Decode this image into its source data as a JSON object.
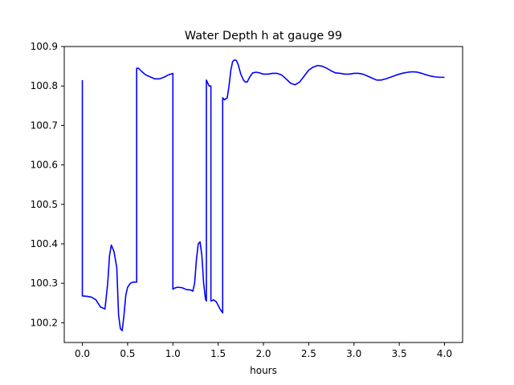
{
  "chart_data": {
    "type": "line",
    "title": "Water Depth h at gauge 99",
    "xlabel": "hours",
    "ylabel": "",
    "xlim": [
      -0.2,
      4.2
    ],
    "ylim": [
      100.15,
      100.9
    ],
    "xticks": [
      0.0,
      0.5,
      1.0,
      1.5,
      2.0,
      2.5,
      3.0,
      3.5,
      4.0
    ],
    "xtick_labels": [
      "0.0",
      "0.5",
      "1.0",
      "1.5",
      "2.0",
      "2.5",
      "3.0",
      "3.5",
      "4.0"
    ],
    "yticks": [
      100.2,
      100.3,
      100.4,
      100.5,
      100.6,
      100.7,
      100.8,
      100.9
    ],
    "ytick_labels": [
      "100.2",
      "100.3",
      "100.4",
      "100.5",
      "100.6",
      "100.7",
      "100.8",
      "100.9"
    ],
    "grid": false,
    "line_color": "#0000ff",
    "series": [
      {
        "x": [
          0.0,
          0.0,
          0.0,
          0.05,
          0.1,
          0.15,
          0.2,
          0.25,
          0.28,
          0.3,
          0.32,
          0.35,
          0.38,
          0.4,
          0.42,
          0.44,
          0.46,
          0.48,
          0.5,
          0.53,
          0.56,
          0.59,
          0.6,
          0.6,
          0.62,
          0.65,
          0.7,
          0.75,
          0.8,
          0.85,
          0.9,
          0.95,
          1.0,
          1.0,
          1.02,
          1.05,
          1.1,
          1.15,
          1.2,
          1.22,
          1.24,
          1.26,
          1.28,
          1.3,
          1.32,
          1.34,
          1.36,
          1.37,
          1.37,
          1.38,
          1.4,
          1.42,
          1.42,
          1.43,
          1.45,
          1.48,
          1.52,
          1.55,
          1.55,
          1.55,
          1.57,
          1.6,
          1.62,
          1.64,
          1.66,
          1.68,
          1.7,
          1.72,
          1.75,
          1.78,
          1.8,
          1.82,
          1.85,
          1.88,
          1.92,
          1.96,
          2.0,
          2.05,
          2.1,
          2.15,
          2.2,
          2.25,
          2.3,
          2.35,
          2.4,
          2.45,
          2.5,
          2.55,
          2.6,
          2.65,
          2.7,
          2.75,
          2.8,
          2.85,
          2.9,
          2.95,
          3.0,
          3.05,
          3.1,
          3.15,
          3.2,
          3.25,
          3.3,
          3.35,
          3.4,
          3.45,
          3.5,
          3.55,
          3.6,
          3.65,
          3.7,
          3.75,
          3.8,
          3.85,
          3.9,
          3.95,
          4.0
        ],
        "y": [
          100.815,
          100.268,
          100.268,
          100.267,
          100.265,
          100.258,
          100.24,
          100.235,
          100.3,
          100.37,
          100.397,
          100.38,
          100.34,
          100.22,
          100.185,
          100.18,
          100.22,
          100.27,
          100.29,
          100.3,
          100.303,
          100.303,
          100.303,
          100.845,
          100.845,
          100.838,
          100.828,
          100.823,
          100.818,
          100.818,
          100.822,
          100.828,
          100.832,
          100.285,
          100.288,
          100.29,
          100.289,
          100.284,
          100.283,
          100.28,
          100.3,
          100.36,
          100.4,
          100.405,
          100.37,
          100.3,
          100.26,
          100.255,
          100.815,
          100.81,
          100.8,
          100.8,
          100.255,
          100.256,
          100.258,
          100.253,
          100.235,
          100.225,
          100.225,
          100.77,
          100.765,
          100.77,
          100.8,
          100.84,
          100.862,
          100.866,
          100.865,
          100.855,
          100.83,
          100.815,
          100.81,
          100.81,
          100.823,
          100.833,
          100.835,
          100.833,
          100.83,
          100.83,
          100.832,
          100.832,
          100.828,
          100.818,
          100.807,
          100.803,
          100.81,
          100.825,
          100.84,
          100.848,
          100.852,
          100.85,
          100.845,
          100.838,
          100.833,
          100.832,
          100.83,
          100.83,
          100.832,
          100.832,
          100.83,
          100.825,
          100.82,
          100.815,
          100.815,
          100.818,
          100.822,
          100.826,
          100.83,
          100.833,
          100.835,
          100.836,
          100.835,
          100.832,
          100.828,
          100.825,
          100.823,
          100.822,
          100.822
        ]
      }
    ]
  }
}
